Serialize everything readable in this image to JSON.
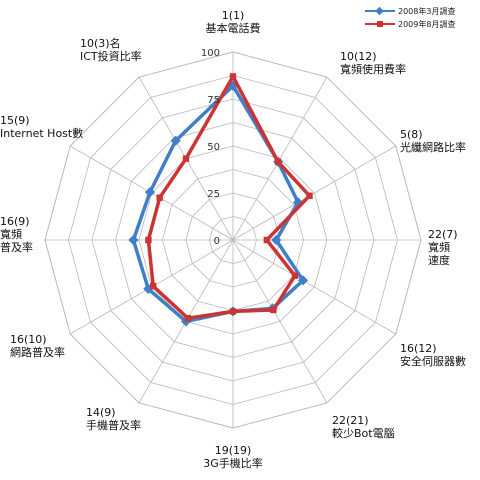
{
  "chart_data": {
    "type": "radar",
    "axes": [
      {
        "lines": [
          "1(1)",
          "基本電話費"
        ]
      },
      {
        "lines": [
          "10(12)",
          "寬頻使用費率"
        ]
      },
      {
        "lines": [
          "5(8)",
          "光纖網路比率"
        ]
      },
      {
        "lines": [
          "22(7)",
          "寬頻",
          "速度"
        ]
      },
      {
        "lines": [
          "16(12)",
          "安全伺服器數"
        ]
      },
      {
        "lines": [
          "22(21)",
          "較少Bot電腦"
        ]
      },
      {
        "lines": [
          "19(19)",
          "3G手機比率"
        ]
      },
      {
        "lines": [
          "14(9)",
          "手機普及率"
        ]
      },
      {
        "lines": [
          "16(10)",
          "網路普及率"
        ]
      },
      {
        "lines": [
          "16(9)",
          "寬頻",
          "普及率"
        ]
      },
      {
        "lines": [
          "15(9)",
          "Internet Host數"
        ]
      },
      {
        "lines": [
          "10(3)名",
          "ICT投資比率"
        ]
      }
    ],
    "ticks": [
      0,
      25,
      50,
      75,
      100
    ],
    "range": [
      0,
      100
    ],
    "grid": true,
    "legend_position": "top-right",
    "series": [
      {
        "name": "2008年3月調查",
        "color": "#3f7fc7",
        "values": [
          82,
          48,
          40,
          23,
          43,
          42,
          38,
          50,
          52,
          53,
          51,
          61
        ]
      },
      {
        "name": "2009年8月調查",
        "color": "#cc3333",
        "values": [
          87,
          48,
          47,
          18,
          38,
          43,
          38,
          48,
          49,
          45,
          45,
          50
        ]
      }
    ]
  }
}
